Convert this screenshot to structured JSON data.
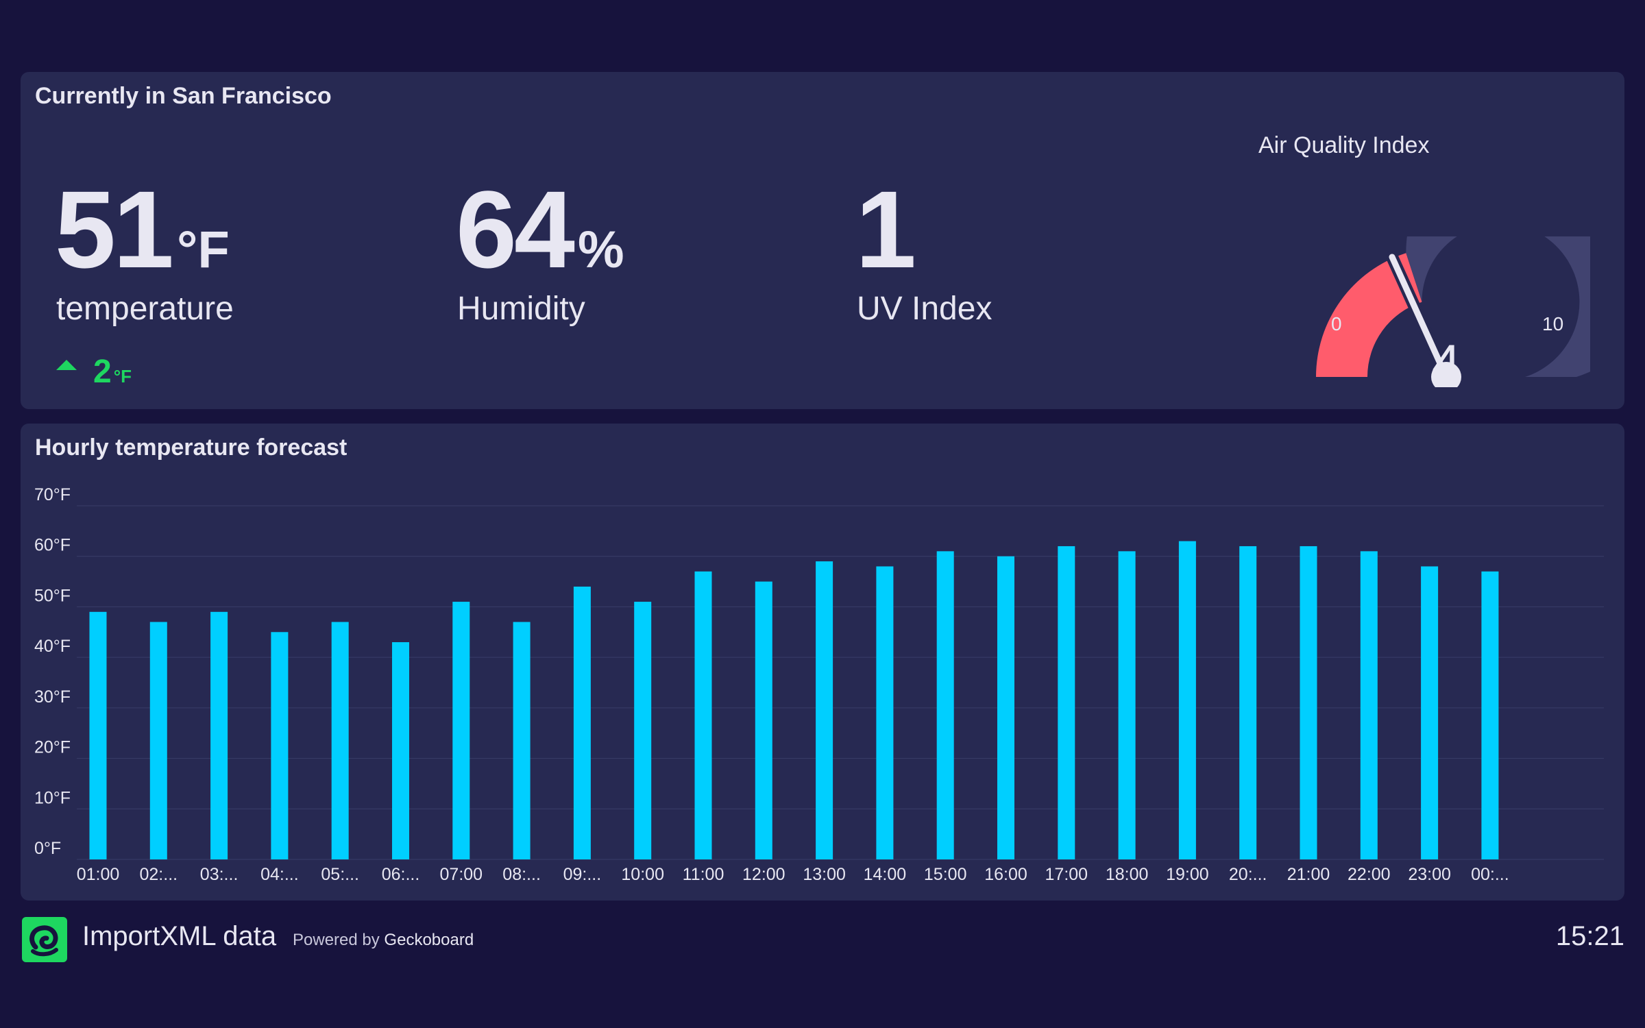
{
  "current": {
    "title": "Currently in San Francisco",
    "temperature": {
      "value": "51",
      "unit": "°F",
      "label": "temperature"
    },
    "temperature_change": {
      "value": "2",
      "unit": "°F",
      "direction": "up"
    },
    "humidity": {
      "value": "64",
      "unit": "%",
      "label": "Humidity"
    },
    "uv": {
      "value": "1",
      "label": "UV Index"
    },
    "air_quality": {
      "title": "Air Quality Index",
      "min": "0",
      "max": "10",
      "value": "4",
      "level": 4
    }
  },
  "forecast": {
    "title": "Hourly temperature forecast"
  },
  "chart_data": {
    "type": "bar",
    "title": "Hourly temperature forecast",
    "categories": [
      "01:00",
      "02:...",
      "03:...",
      "04:...",
      "05:...",
      "06:...",
      "07:00",
      "08:...",
      "09:...",
      "10:00",
      "11:00",
      "12:00",
      "13:00",
      "14:00",
      "15:00",
      "16:00",
      "17:00",
      "18:00",
      "19:00",
      "20:...",
      "21:00",
      "22:00",
      "23:00",
      "00:..."
    ],
    "values": [
      49,
      47,
      49,
      45,
      47,
      43,
      51,
      47,
      54,
      51,
      57,
      55,
      59,
      58,
      61,
      60,
      62,
      61,
      63,
      62,
      62,
      61,
      58,
      57
    ],
    "ylim": [
      0,
      70
    ],
    "yticks": [
      "0°F",
      "10°F",
      "20°F",
      "30°F",
      "40°F",
      "50°F",
      "60°F",
      "70°F"
    ],
    "grid": true,
    "colors": {
      "bar": "#00cfff",
      "grid": "#3a3d68"
    }
  },
  "footer": {
    "title": "ImportXML data",
    "powered_prefix": "Powered by",
    "powered_brand": "Geckoboard",
    "time": "15:21"
  },
  "colors": {
    "background": "#17133d",
    "panel": "#272952",
    "positive": "#1ed760",
    "gauge_fill": "#ff5c6c",
    "gauge_track": "#414370",
    "logo": "#1ed760"
  }
}
